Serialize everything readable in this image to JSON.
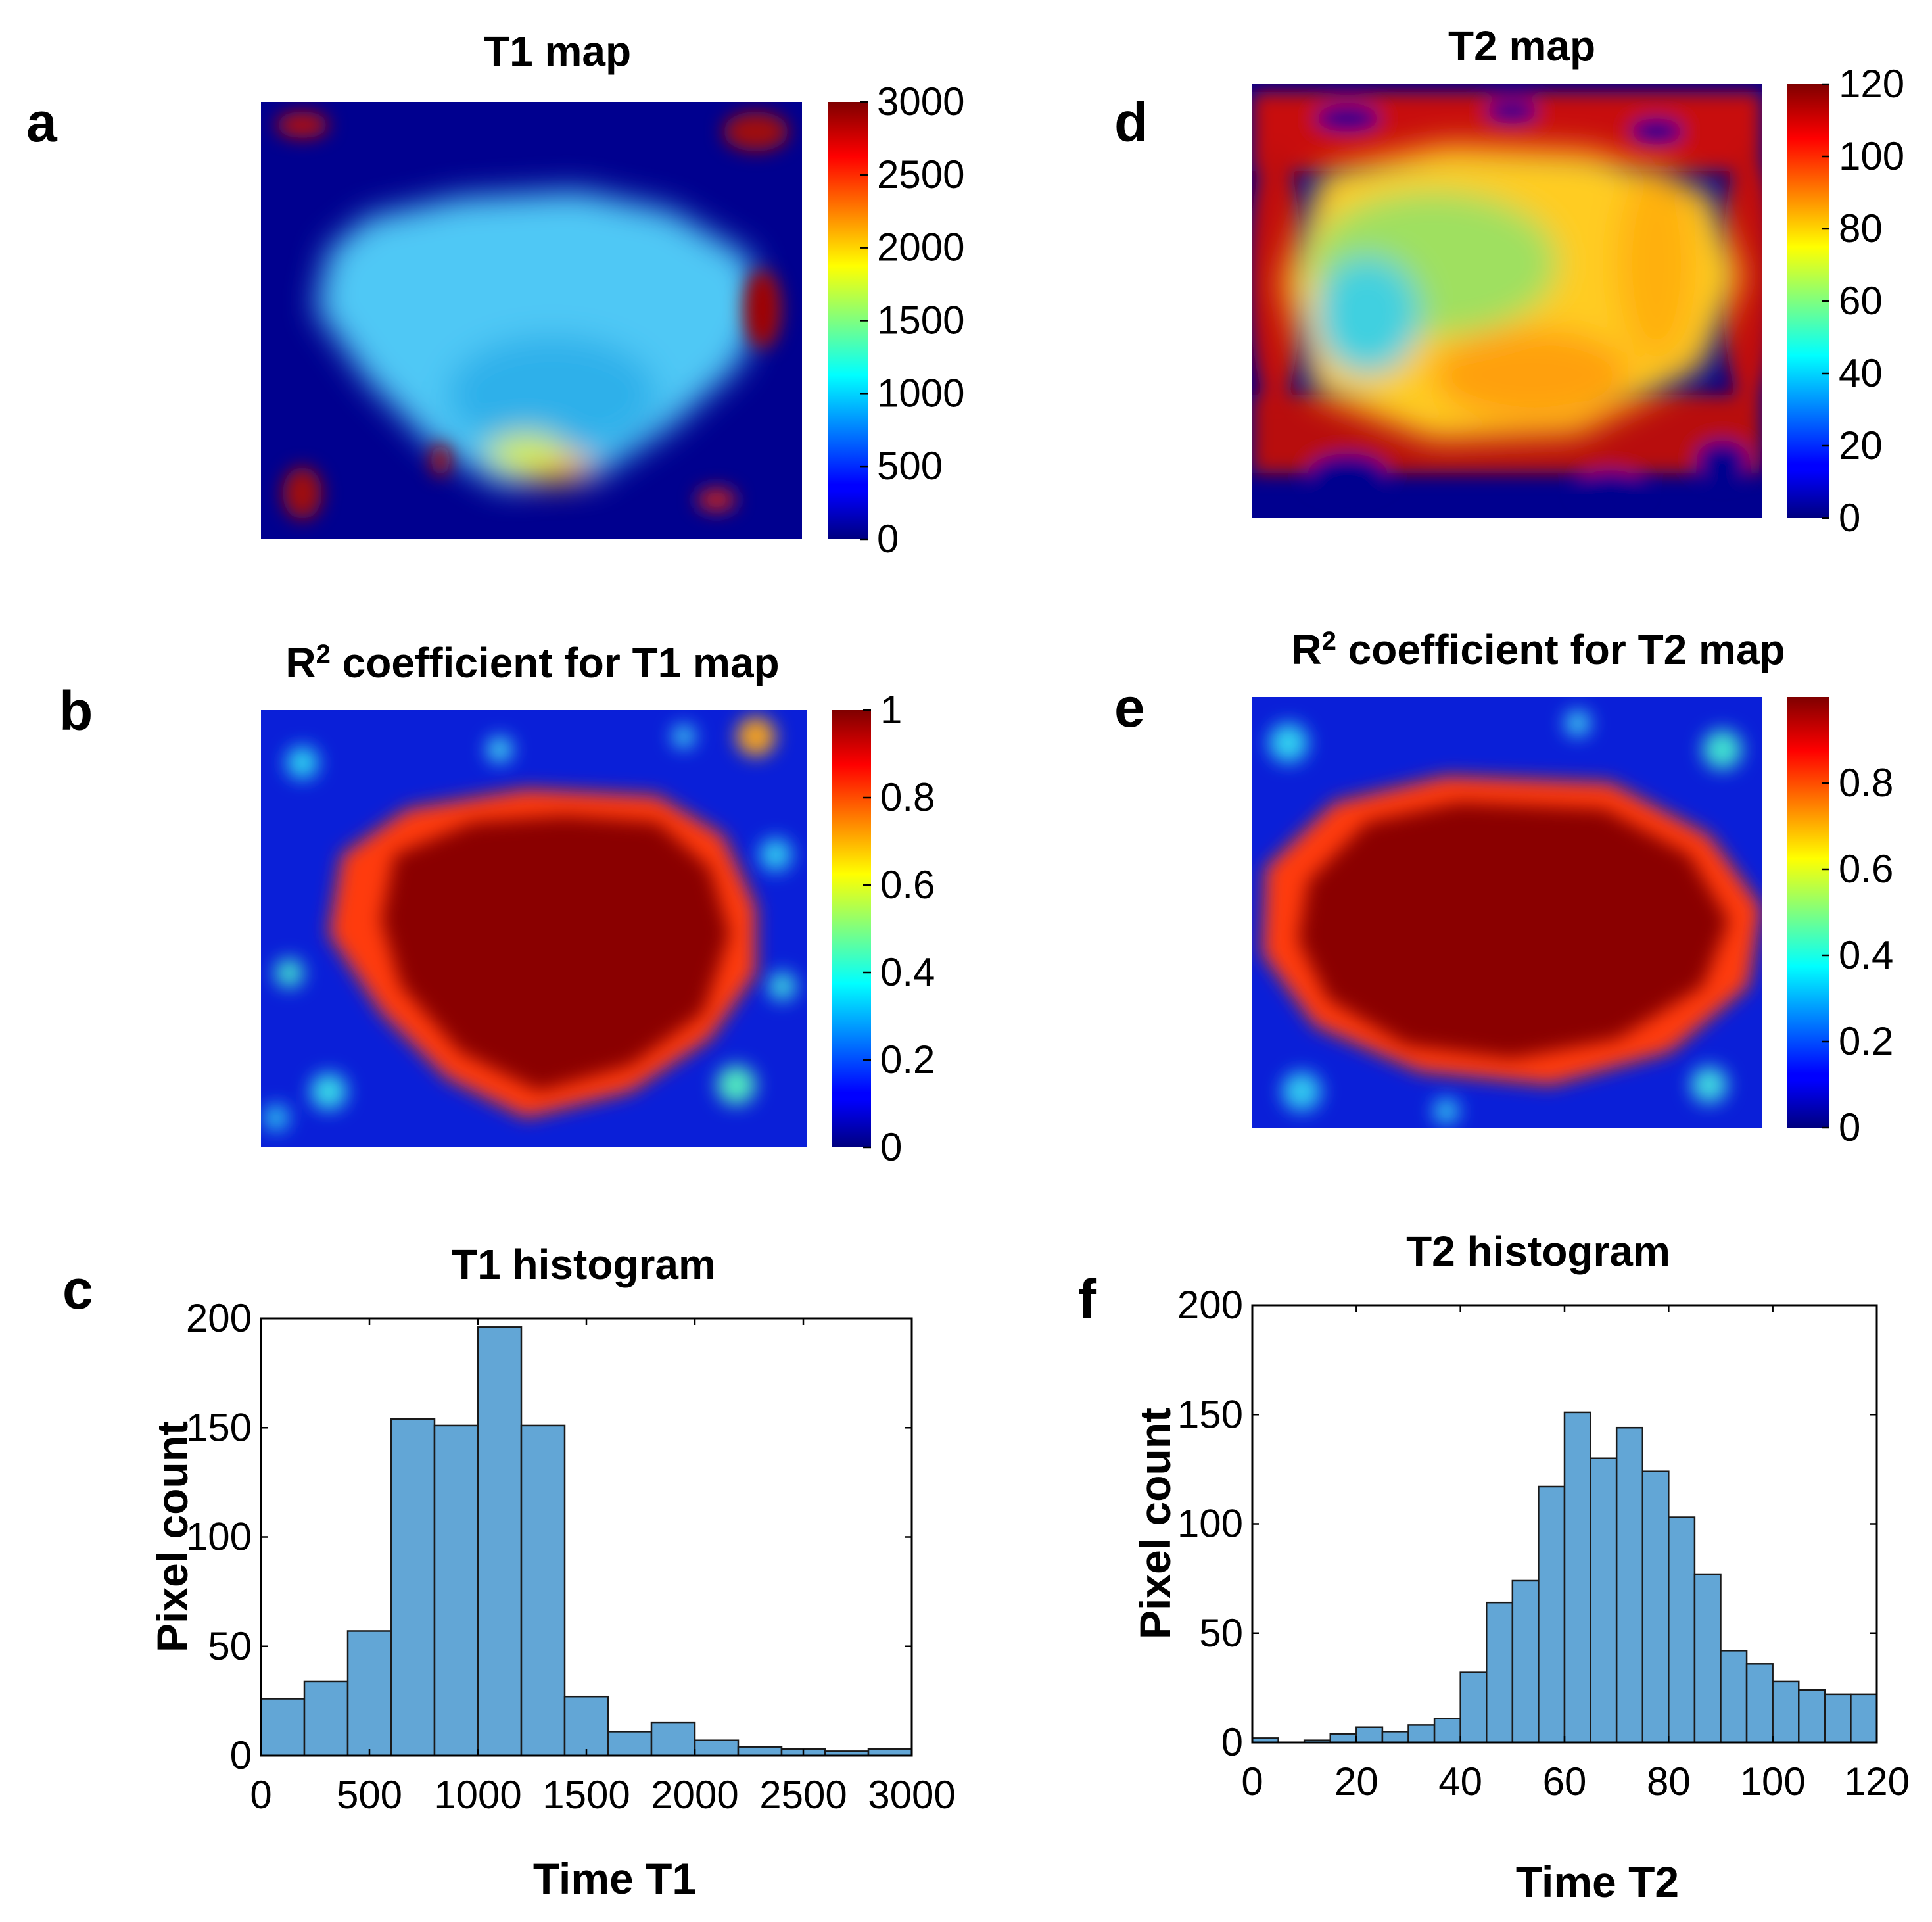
{
  "panels": {
    "a": {
      "label": "a",
      "title": "T1 map",
      "colorbar_ticks": [
        "0",
        "500",
        "1000",
        "1500",
        "2000",
        "2500",
        "3000"
      ],
      "clim": [
        0,
        3000
      ]
    },
    "b": {
      "label": "b",
      "title_prefix": "R",
      "title_sup": "2",
      "title_suffix": " coefficient for T1 map",
      "colorbar_ticks": [
        "0",
        "0.2",
        "0.4",
        "0.6",
        "0.8",
        "1"
      ],
      "clim": [
        0,
        1
      ]
    },
    "c": {
      "label": "c"
    },
    "d": {
      "label": "d",
      "title": "T2 map",
      "colorbar_ticks": [
        "0",
        "20",
        "40",
        "60",
        "80",
        "100",
        "120"
      ],
      "clim": [
        0,
        120
      ]
    },
    "e": {
      "label": "e",
      "title_prefix": "R",
      "title_sup": "2",
      "title_suffix": " coefficient for T2 map",
      "colorbar_ticks": [
        "0",
        "0.2",
        "0.4",
        "0.6",
        "0.8"
      ],
      "clim": [
        0,
        1
      ]
    },
    "f": {
      "label": "f"
    }
  },
  "colors": {
    "bar_fill": "#62a6d6",
    "bar_edge": "#1a1a1a",
    "jet_low": "#00007f",
    "jet_high": "#7f0000"
  },
  "chart_data": [
    {
      "type": "heatmap",
      "title": "T1 map",
      "colormap": "jet",
      "clim": [
        0,
        3000
      ],
      "colorbar_ticks": [
        0,
        500,
        1000,
        1500,
        2000,
        2500,
        3000
      ],
      "description_values": {
        "background": 0,
        "tissue_typical": 1100,
        "edge_hot": 3000
      }
    },
    {
      "type": "heatmap",
      "title": "R2 coefficient for T1 map",
      "colormap": "jet",
      "clim": [
        0,
        1
      ],
      "colorbar_ticks": [
        0,
        0.2,
        0.4,
        0.6,
        0.8,
        1
      ],
      "description_values": {
        "background": 0.1,
        "tissue_typical": 1.0
      }
    },
    {
      "type": "bar",
      "title": "T1 histogram",
      "xlabel": "Time T1",
      "ylabel": "Pixel count",
      "xlim": [
        0,
        3000
      ],
      "ylim": [
        0,
        200
      ],
      "xticks": [
        0,
        500,
        1000,
        1500,
        2000,
        2500,
        3000
      ],
      "yticks": [
        0,
        50,
        100,
        150,
        200
      ],
      "bin_width": 200,
      "bin_edges_start": 0,
      "values": [
        26,
        34,
        57,
        154,
        151,
        196,
        151,
        27,
        11,
        15,
        7,
        4,
        3,
        2,
        3
      ]
    },
    {
      "type": "heatmap",
      "title": "T2 map",
      "colormap": "jet",
      "clim": [
        0,
        120
      ],
      "colorbar_ticks": [
        0,
        20,
        40,
        60,
        80,
        100,
        120
      ],
      "description_values": {
        "background": 0,
        "tissue_typical": 65,
        "edge_hot": 120
      }
    },
    {
      "type": "heatmap",
      "title": "R2 coefficient for T2 map",
      "colormap": "jet",
      "clim": [
        0,
        1
      ],
      "colorbar_ticks": [
        0,
        0.2,
        0.4,
        0.6,
        0.8
      ],
      "description_values": {
        "background": 0.1,
        "tissue_typical": 1.0
      }
    },
    {
      "type": "bar",
      "title": "T2 histogram",
      "xlabel": "Time T2",
      "ylabel": "Pixel count",
      "xlim": [
        0,
        120
      ],
      "ylim": [
        0,
        200
      ],
      "xticks": [
        0,
        20,
        40,
        60,
        80,
        100,
        120
      ],
      "yticks": [
        0,
        50,
        100,
        150,
        200
      ],
      "bin_width": 5,
      "bin_edges_start": 0,
      "values": [
        2,
        0,
        1,
        4,
        7,
        5,
        8,
        11,
        32,
        64,
        74,
        117,
        151,
        130,
        144,
        124,
        103,
        77,
        42,
        36,
        28,
        24,
        22,
        22
      ]
    }
  ]
}
